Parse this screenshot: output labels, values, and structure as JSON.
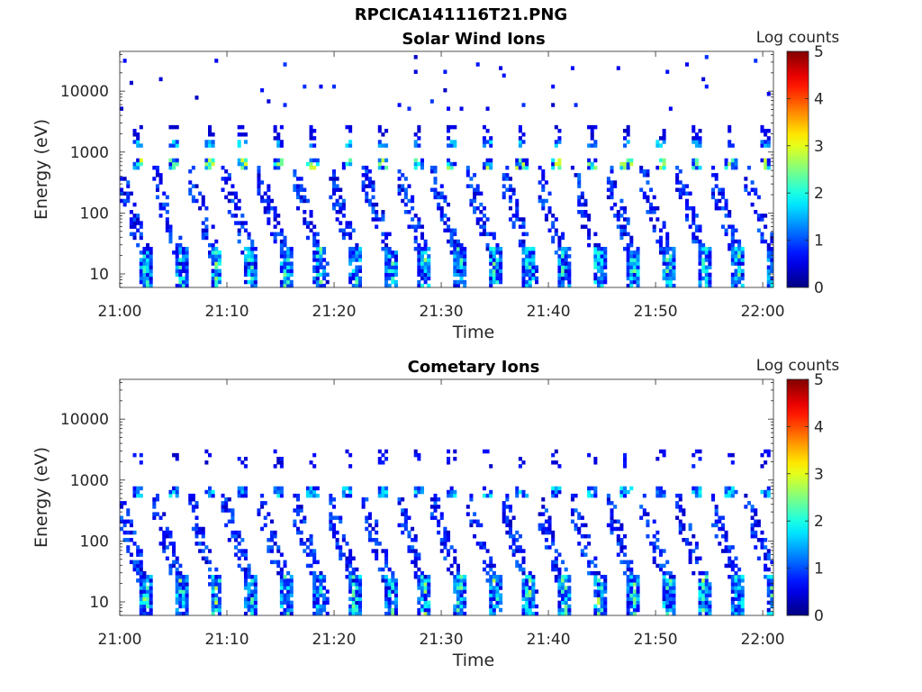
{
  "figure": {
    "title": "RPCICA141116T21.PNG"
  },
  "chart_data": [
    {
      "type": "heatmap",
      "title": "Solar Wind Ions",
      "xlabel": "Time",
      "ylabel": "Energy (eV)",
      "x_ticks": [
        "21:00",
        "21:10",
        "21:20",
        "21:30",
        "21:40",
        "21:50",
        "22:00"
      ],
      "x_range": [
        "21:00",
        "22:01"
      ],
      "y_scale": "log",
      "y_ticks": [
        10,
        100,
        1000,
        10000
      ],
      "y_tick_labels": [
        "10",
        "100",
        "1000",
        "10000"
      ],
      "y_range": [
        6,
        45000
      ],
      "colorbar": {
        "label": "Log counts",
        "range": [
          0,
          5
        ],
        "ticks": [
          "0",
          "1",
          "2",
          "3",
          "4",
          "5"
        ],
        "colormap": "jet"
      },
      "features": {
        "sweep_period_minutes": 3.2,
        "sweep_start_minutes": [
          2.0,
          5.3,
          8.6,
          11.8,
          15.1,
          18.3,
          21.6,
          24.9,
          28.1,
          31.3,
          34.6,
          37.8,
          41.1,
          44.3,
          47.6,
          50.8,
          54.1,
          57.3,
          60.6
        ],
        "solar_wind_peak_energy_eV": 650,
        "solar_wind_peak_log_counts": 3.0,
        "alpha_band_energy_eV": 1400,
        "low_energy_band_eV": [
          6,
          25
        ],
        "low_energy_peak_log_counts": 2.8
      }
    },
    {
      "type": "heatmap",
      "title": "Cometary Ions",
      "xlabel": "Time",
      "ylabel": "Energy (eV)",
      "x_ticks": [
        "21:00",
        "21:10",
        "21:20",
        "21:30",
        "21:40",
        "21:50",
        "22:00"
      ],
      "x_range": [
        "21:00",
        "22:01"
      ],
      "y_scale": "log",
      "y_ticks": [
        10,
        100,
        1000,
        10000
      ],
      "y_tick_labels": [
        "10",
        "100",
        "1000",
        "10000"
      ],
      "y_range": [
        6,
        45000
      ],
      "colorbar": {
        "label": "Log counts",
        "range": [
          0,
          5
        ],
        "ticks": [
          "0",
          "1",
          "2",
          "3",
          "4",
          "5"
        ],
        "colormap": "jet"
      },
      "features": {
        "sweep_period_minutes": 3.2,
        "solar_wind_peak_energy_eV": 650,
        "solar_wind_peak_log_counts": 2.0,
        "low_energy_band_eV": [
          6,
          25
        ],
        "low_energy_peak_log_counts": 3.0
      }
    }
  ]
}
